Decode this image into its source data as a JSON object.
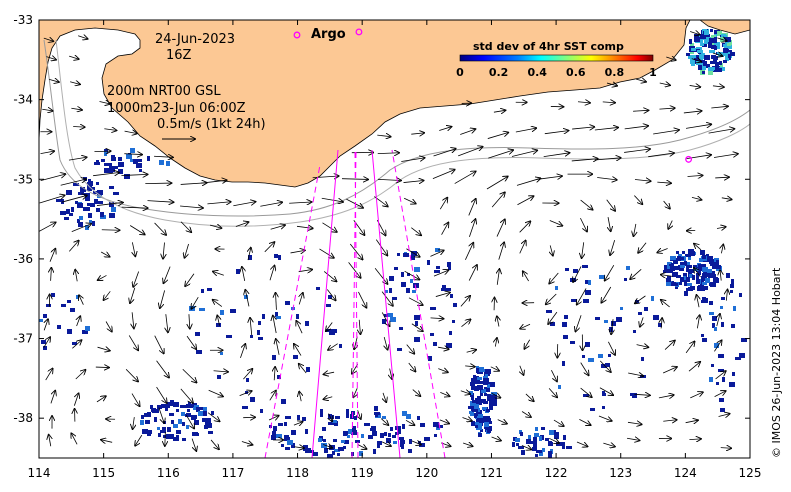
{
  "map": {
    "date_label": "24-Jun-2023",
    "time_label": "16Z",
    "argo_label": "Argo",
    "contour_label": "200m  NRT00 GSL",
    "contour_label2": "1000m23-Jun 06:00Z",
    "scale_label": "0.5m/s (1kt 24h)",
    "credit": "© IMOS 26-Jun-2023 13:04 Hobart",
    "x_ticks": [
      "114",
      "115",
      "116",
      "117",
      "118",
      "119",
      "120",
      "121",
      "122",
      "123",
      "124",
      "125"
    ],
    "y_ticks": [
      "-33",
      "-34",
      "-35",
      "-36",
      "-37",
      "-38"
    ],
    "xlim": [
      114,
      125
    ],
    "ylim": [
      -38.5,
      -33
    ],
    "argo_floats": [
      {
        "lon": 124.05,
        "lat": -34.75
      },
      {
        "lon": 118.95,
        "lat": -33.15
      }
    ]
  },
  "colorbar": {
    "title": "std dev of 4hr SST comp",
    "ticks": [
      "0",
      "0.2",
      "0.4",
      "0.6",
      "0.8",
      "1"
    ],
    "colors": [
      "#00007f",
      "#0000ff",
      "#0080ff",
      "#00ffff",
      "#80ff80",
      "#ffff00",
      "#ff8000",
      "#ff0000",
      "#7f0000"
    ]
  },
  "colors": {
    "land": "#fcc894",
    "argo": "#ff00ff",
    "track": "#ff00ff",
    "pixel_low": "#0a1a9a",
    "pixel_mid": "#1f6fd6"
  }
}
